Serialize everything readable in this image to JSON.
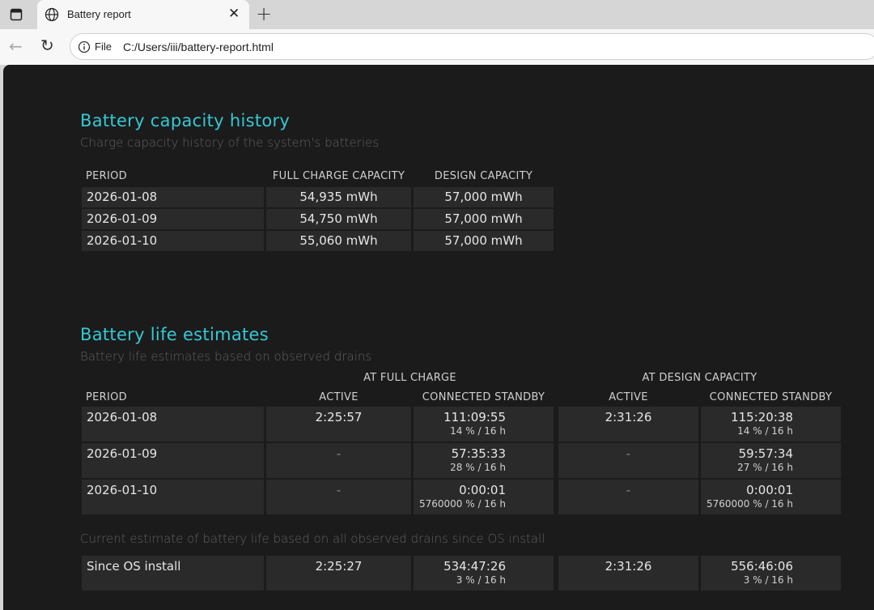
{
  "browser": {
    "tab_title": "Battery report",
    "url_scheme": "File",
    "url": "C:/Users/iii/battery-report.html"
  },
  "capacity": {
    "title": "Battery capacity history",
    "subtitle": "Charge capacity history of the system's batteries",
    "headers": [
      "PERIOD",
      "FULL CHARGE CAPACITY",
      "DESIGN CAPACITY"
    ],
    "rows": [
      [
        "2026-01-08",
        "54,935 mWh",
        "57,000 mWh"
      ],
      [
        "2026-01-09",
        "54,750 mWh",
        "57,000 mWh"
      ],
      [
        "2026-01-10",
        "55,060 mWh",
        "57,000 mWh"
      ]
    ]
  },
  "life": {
    "title": "Battery life estimates",
    "subtitle": "Battery life estimates based on observed drains",
    "group_full": "AT FULL CHARGE",
    "group_design": "AT DESIGN CAPACITY",
    "headers": [
      "PERIOD",
      "ACTIVE",
      "CONNECTED STANDBY",
      "ACTIVE",
      "CONNECTED STANDBY"
    ],
    "rows": [
      {
        "period": "2026-01-08",
        "active_full": "2:25:57",
        "standby_full": "111:09:55",
        "standby_full_sub": "14 % / 16 h",
        "active_design": "2:31:26",
        "standby_design": "115:20:38",
        "standby_design_sub": "14 % / 16 h"
      },
      {
        "period": "2026-01-09",
        "active_full": "-",
        "standby_full": "57:35:33",
        "standby_full_sub": "28 % / 16 h",
        "active_design": "-",
        "standby_design": "59:57:34",
        "standby_design_sub": "27 % / 16 h"
      },
      {
        "period": "2026-01-10",
        "active_full": "-",
        "standby_full": "0:00:01",
        "standby_full_sub": "5760000 % / 16 h",
        "active_design": "-",
        "standby_design": "0:00:01",
        "standby_design_sub": "5760000 % / 16 h"
      }
    ],
    "current_note": "Current estimate of battery life based on all observed drains since OS install",
    "since": {
      "period": "Since OS install",
      "active_full": "2:25:27",
      "standby_full": "534:47:26",
      "standby_full_sub": "3 % / 16 h",
      "active_design": "2:31:26",
      "standby_design": "556:46:06",
      "standby_design_sub": "3 % / 16 h"
    }
  }
}
